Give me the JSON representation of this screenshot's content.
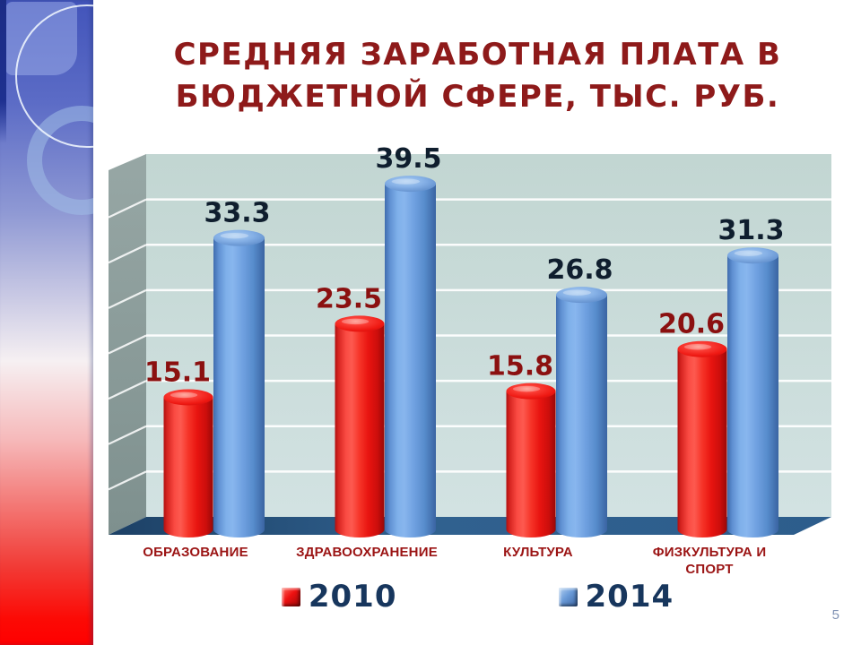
{
  "slide": {
    "title_line1": "СРЕДНЯЯ ЗАРАБОТНАЯ ПЛАТА В",
    "title_line2": "БЮДЖЕТНОЙ СФЕРЕ, ТЫС. РУБ.",
    "page_number": "5"
  },
  "chart_data": {
    "type": "bar",
    "style": "3d-cylinder",
    "title": "СРЕДНЯЯ ЗАРАБОТНАЯ ПЛАТА В БЮДЖЕТНОЙ СФЕРЕ, ТЫС. РУБ.",
    "categories": [
      "ОБРАЗОВАНИЕ",
      "ЗДРАВООХРАНЕНИЕ",
      "КУЛЬТУРА",
      "ФИЗКУЛЬТУРА И\nСПОРТ"
    ],
    "series": [
      {
        "name": "2010",
        "color": "#ee1111",
        "label_color": "#8b1010",
        "values": [
          15.1,
          23.5,
          15.8,
          20.6
        ]
      },
      {
        "name": "2014",
        "color": "#6b9bd8",
        "label_color": "#0f1e2e",
        "values": [
          33.3,
          39.5,
          26.8,
          31.3
        ]
      }
    ],
    "ylim": [
      0,
      40
    ],
    "gridline_step": 5,
    "grid": true,
    "legend_position": "bottom",
    "data_labels": true,
    "category_label_color": "#9b1414"
  },
  "colors": {
    "title": "#8e1a1a",
    "legend_text": "#17365d",
    "back_wall": "#ccdede",
    "side_wall": "#8d9d9b",
    "floor": "#2d5d8c",
    "gridline": "#ffffff",
    "band_top": "#4254ba",
    "band_bottom": "#ff0000",
    "page_number": "#8294b5"
  }
}
